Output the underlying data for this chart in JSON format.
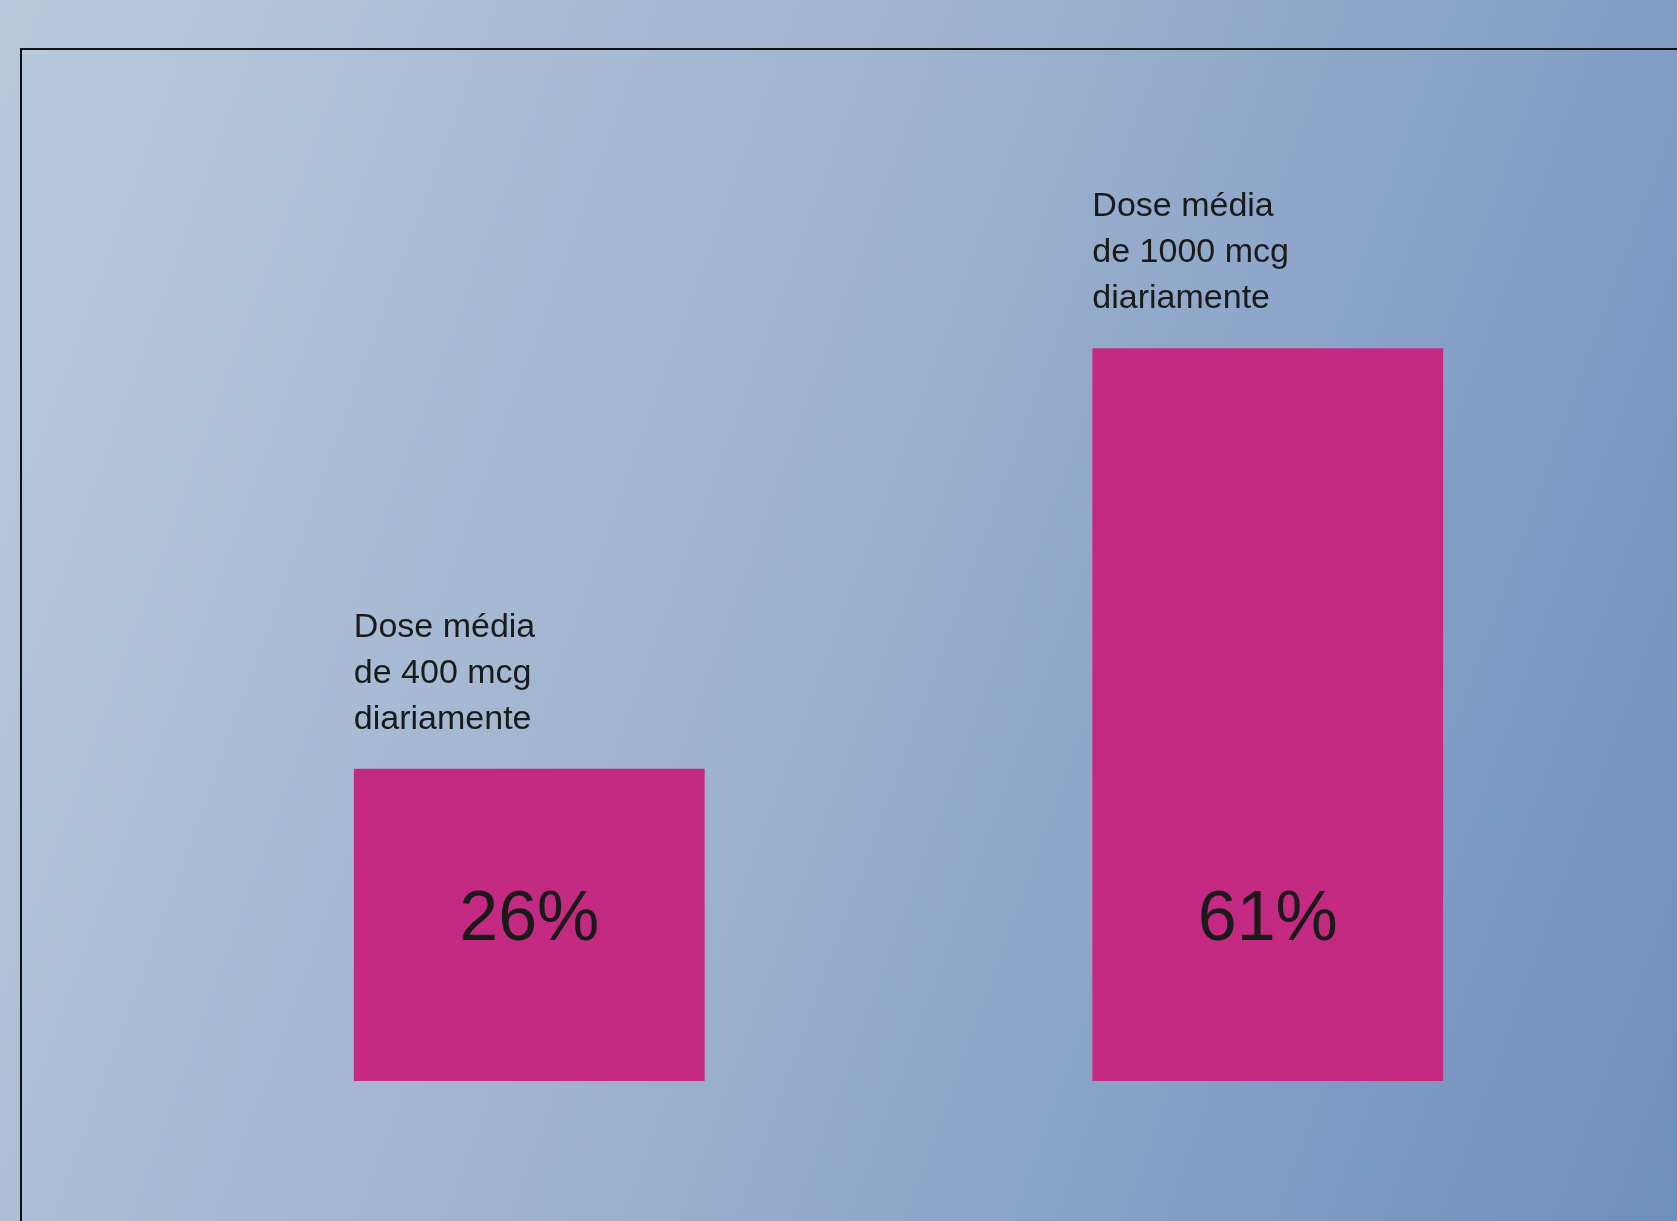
{
  "chart_data": {
    "type": "bar",
    "categories": [
      "Dose média de 400 mcg diariamente",
      "Dose média de 1000 mcg diariamente"
    ],
    "values": [
      26,
      61
    ],
    "color": "#c42a82",
    "value_labels": [
      "26%",
      "61%"
    ],
    "legend": false
  }
}
